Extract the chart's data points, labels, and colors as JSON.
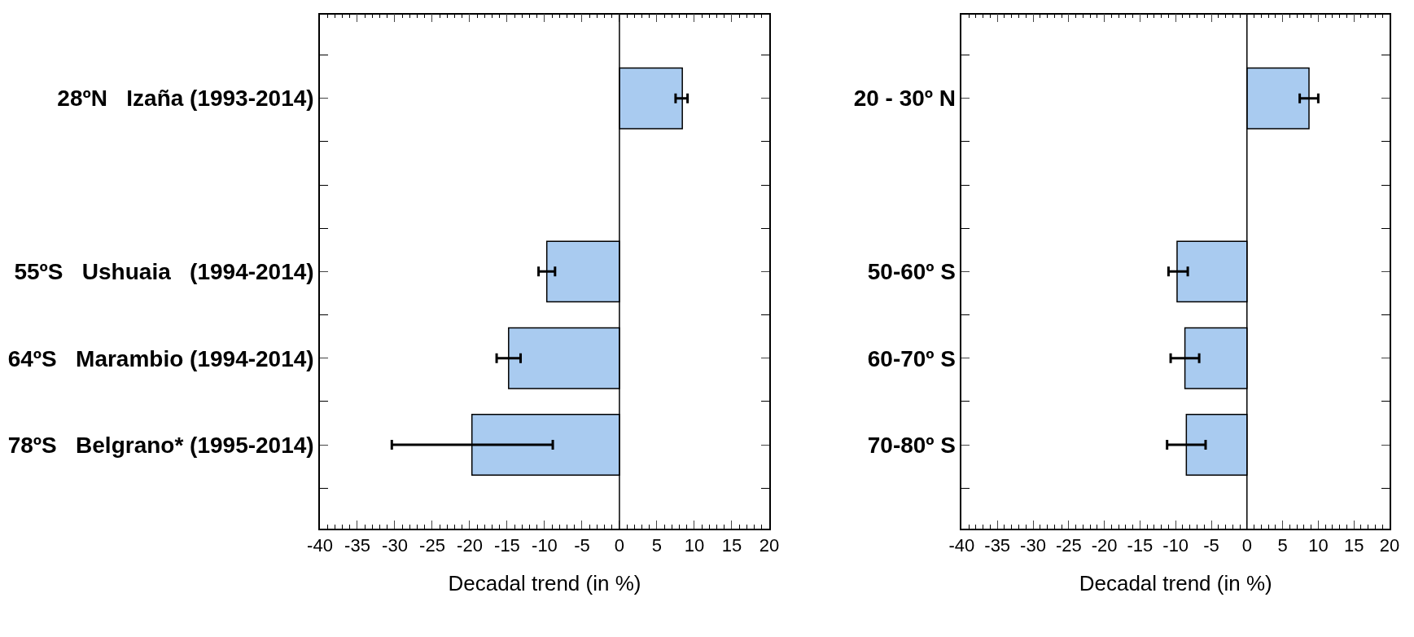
{
  "chart_data": [
    {
      "type": "bar",
      "orientation": "horizontal",
      "xlabel": "Decadal trend (in %)",
      "categories": [
        "28ºN   Izaña (1993-2014)",
        null,
        "55ºS   Ushuaia   (1994-2014)",
        "64ºS   Marambio (1994-2014)",
        "78ºS   Belgrano* (1995-2014)"
      ],
      "values": [
        8.4,
        null,
        -9.7,
        -14.8,
        -19.7
      ],
      "ref_lines": [
        {
          "axis": "x",
          "value": 0
        }
      ],
      "errors": [
        [
          7.5,
          9.1
        ],
        null,
        [
          -10.8,
          -8.6
        ],
        [
          -16.4,
          -13.2
        ],
        [
          -30.4,
          -8.9
        ]
      ],
      "color": "#a9cbf0",
      "xlim": [
        -40,
        20
      ],
      "xticks": [
        -40,
        -35,
        -30,
        -25,
        -20,
        -15,
        -10,
        -5,
        0,
        5,
        10,
        15,
        20
      ]
    },
    {
      "type": "bar",
      "orientation": "horizontal",
      "xlabel": "Decadal trend (in %)",
      "categories": [
        "20 - 30º N",
        null,
        "50-60º S",
        "60-70º S",
        "70-80º S"
      ],
      "values": [
        8.7,
        null,
        -9.8,
        -8.7,
        -8.5
      ],
      "ref_lines": [
        {
          "axis": "x",
          "value": 0
        }
      ],
      "errors": [
        [
          7.4,
          10.0
        ],
        null,
        [
          -11.0,
          -8.3
        ],
        [
          -10.7,
          -6.7
        ],
        [
          -11.2,
          -5.8
        ]
      ],
      "color": "#a9cbf0",
      "xlim": [
        -40,
        20
      ],
      "xticks": [
        -40,
        -35,
        -30,
        -25,
        -20,
        -15,
        -10,
        -5,
        0,
        5,
        10,
        15,
        20
      ]
    }
  ]
}
